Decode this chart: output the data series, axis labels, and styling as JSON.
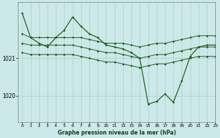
{
  "xlabel": "Graphe pression niveau de la mer (hPa)",
  "xlim": [
    -0.5,
    23
  ],
  "ylim": [
    1019.3,
    1022.5
  ],
  "yticks": [
    1020,
    1021
  ],
  "xticks": [
    0,
    1,
    2,
    3,
    4,
    5,
    6,
    7,
    8,
    9,
    10,
    11,
    12,
    13,
    14,
    15,
    16,
    17,
    18,
    19,
    20,
    21,
    22,
    23
  ],
  "bg_color": "#cce8e8",
  "grid_color": "#aacccc",
  "line_color": "#1a5c1a",
  "series": {
    "upper": [
      1021.65,
      1021.55,
      1021.55,
      1021.55,
      1021.55,
      1021.55,
      1021.55,
      1021.55,
      1021.5,
      1021.45,
      1021.4,
      1021.4,
      1021.4,
      1021.35,
      1021.3,
      1021.35,
      1021.4,
      1021.4,
      1021.45,
      1021.5,
      1021.55,
      1021.6,
      1021.6,
      1021.6
    ],
    "middle": [
      1021.4,
      1021.35,
      1021.35,
      1021.35,
      1021.35,
      1021.35,
      1021.35,
      1021.3,
      1021.25,
      1021.2,
      1021.15,
      1021.15,
      1021.1,
      1021.05,
      1021.0,
      1021.05,
      1021.1,
      1021.1,
      1021.15,
      1021.2,
      1021.25,
      1021.3,
      1021.3,
      1021.3
    ],
    "lower": [
      1021.15,
      1021.1,
      1021.1,
      1021.1,
      1021.1,
      1021.1,
      1021.1,
      1021.05,
      1021.0,
      1020.95,
      1020.9,
      1020.9,
      1020.85,
      1020.8,
      1020.75,
      1020.8,
      1020.85,
      1020.85,
      1020.9,
      1020.95,
      1021.0,
      1021.05,
      1021.05,
      1021.05
    ],
    "main": [
      1022.2,
      1021.55,
      1021.4,
      1021.3,
      1021.55,
      1021.75,
      1022.1,
      1021.85,
      1021.65,
      1021.55,
      1021.35,
      1021.3,
      1021.25,
      1021.15,
      1021.0,
      1019.78,
      1019.85,
      1020.05,
      1019.83,
      1020.4,
      1021.05,
      1021.3,
      1021.35,
      1021.35
    ]
  },
  "marker": "D",
  "markersize": 1.8,
  "linewidth_flat": 0.7,
  "linewidth_main": 0.9
}
